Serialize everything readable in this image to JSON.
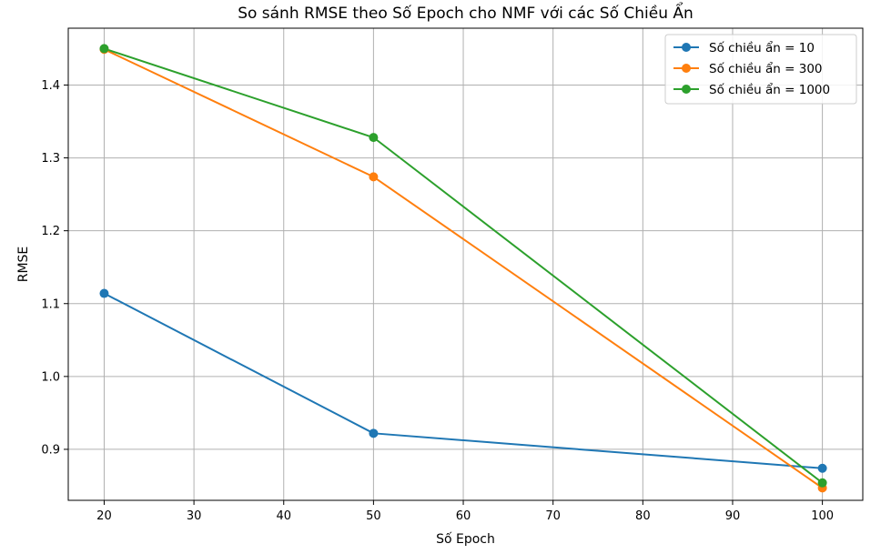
{
  "chart_data": {
    "type": "line",
    "title": "So sánh RMSE theo Số Epoch cho NMF với các Số Chiều Ẩn",
    "xlabel": "Số Epoch",
    "ylabel": "RMSE",
    "x": [
      20,
      50,
      100
    ],
    "xlim": [
      16,
      104.5
    ],
    "ylim": [
      0.83,
      1.478
    ],
    "xticks": [
      "20",
      "30",
      "40",
      "50",
      "60",
      "70",
      "80",
      "90",
      "100"
    ],
    "yticks": [
      "0.9",
      "1.0",
      "1.1",
      "1.2",
      "1.3",
      "1.4"
    ],
    "grid": true,
    "legend_position": "top-right",
    "series": [
      {
        "name": "Số chiều ẩn = 10",
        "color": "#1f77b4",
        "values": [
          1.114,
          0.922,
          0.874
        ]
      },
      {
        "name": "Số chiều ẩn = 300",
        "color": "#ff7f0e",
        "values": [
          1.449,
          1.274,
          0.847
        ]
      },
      {
        "name": "Số chiều ẩn = 1000",
        "color": "#2ca02c",
        "values": [
          1.45,
          1.328,
          0.854
        ]
      }
    ]
  }
}
